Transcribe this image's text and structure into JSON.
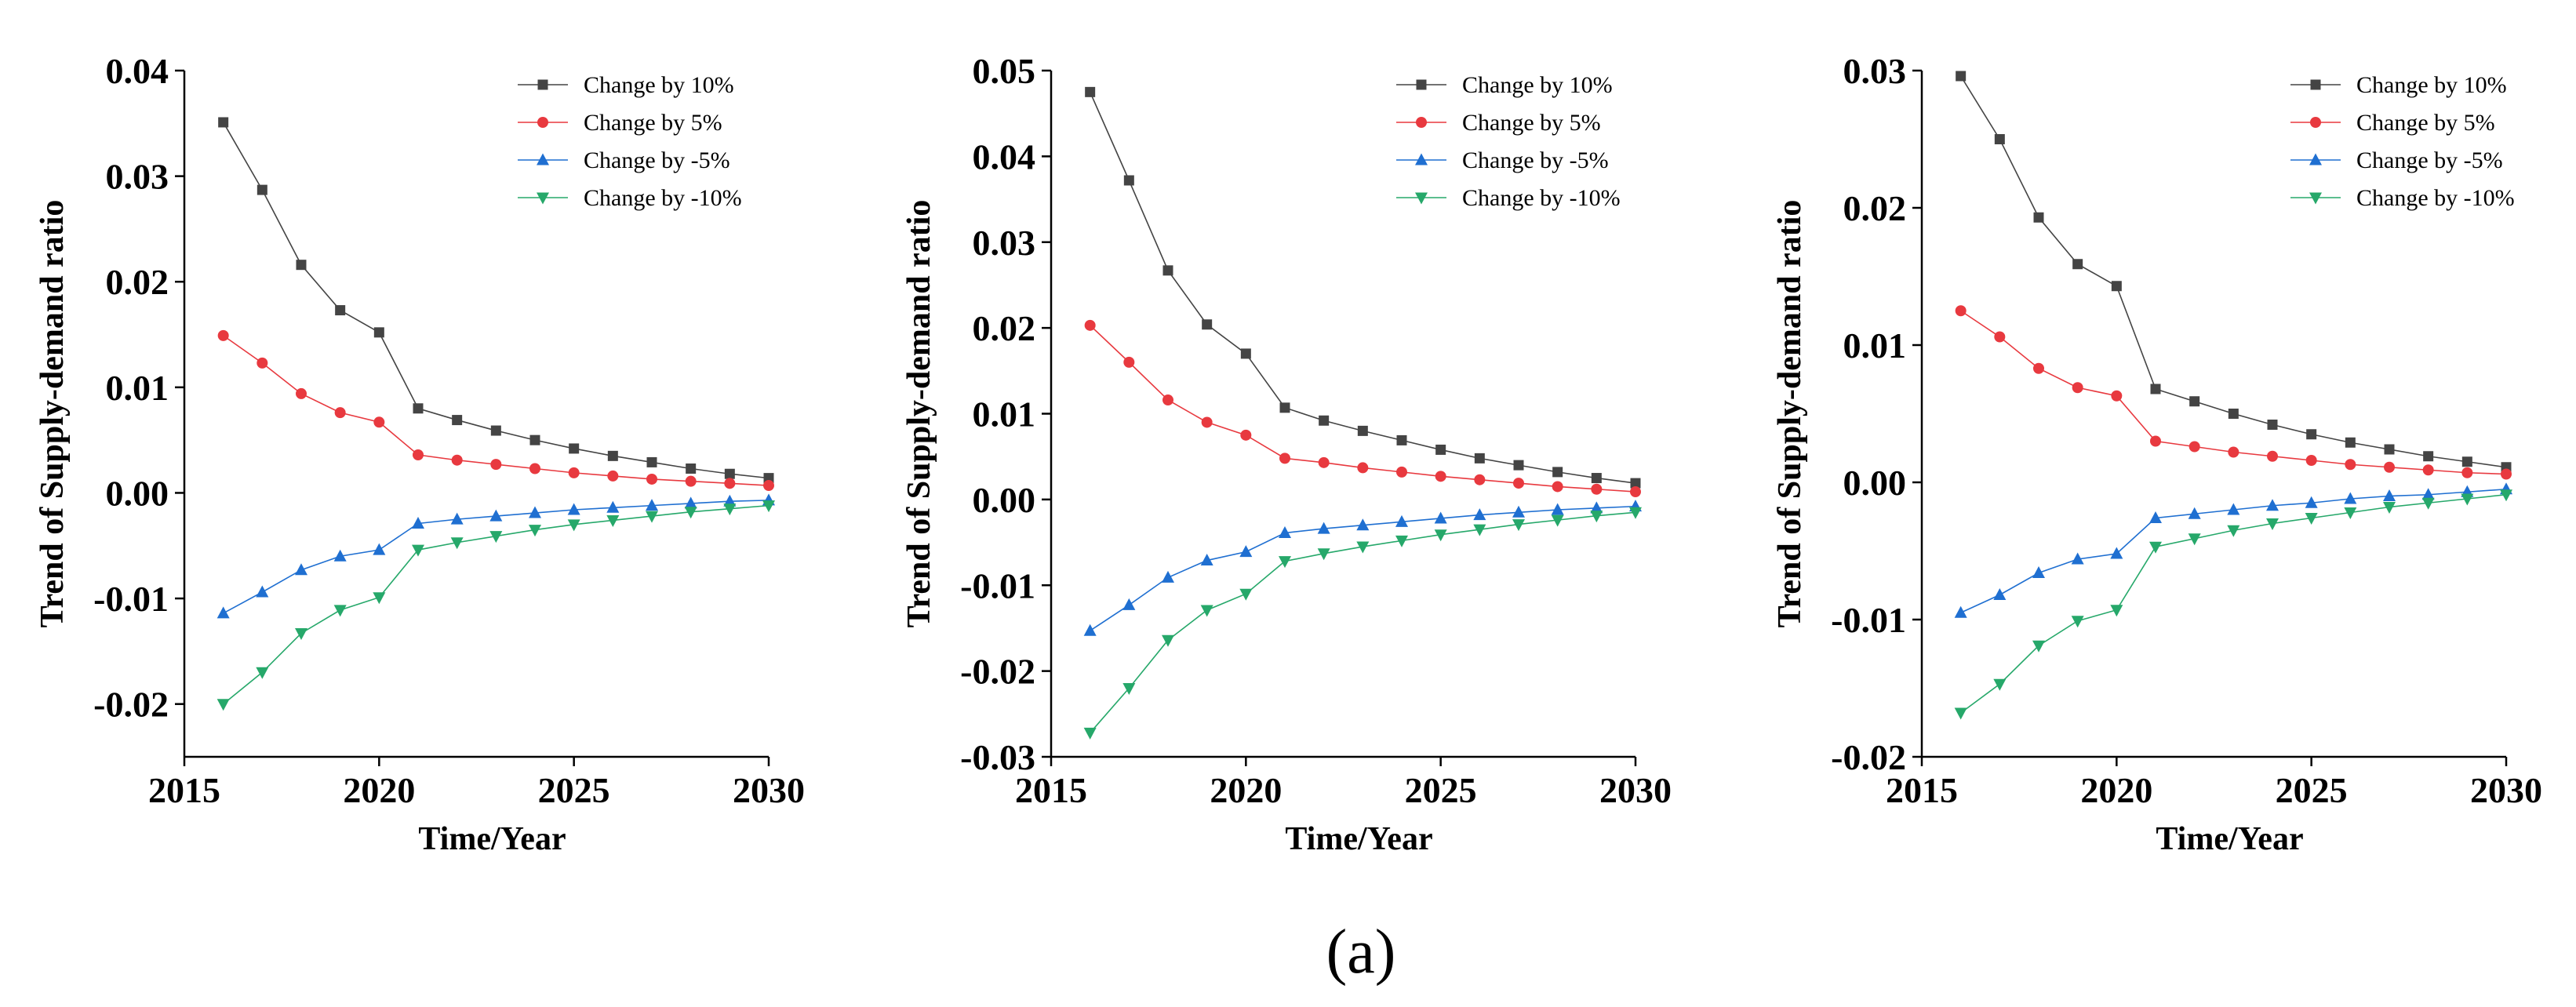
{
  "caption": "(a)",
  "chart_data": [
    {
      "type": "line",
      "title": "",
      "xlabel": "Time/Year",
      "ylabel": "Trend of Supply-demand ratio",
      "xlim": [
        2015,
        2030
      ],
      "ylim": [
        -0.025,
        0.04
      ],
      "xticks": [
        2015,
        2020,
        2025,
        2030
      ],
      "yticks": [
        -0.02,
        -0.01,
        0.0,
        0.01,
        0.02,
        0.03,
        0.04
      ],
      "ytick_labels": [
        "-0.02",
        "-0.01",
        "0.00",
        "0.01",
        "0.02",
        "0.03",
        "0.04"
      ],
      "grid": false,
      "legend_position": "top-right",
      "x": [
        2016,
        2017,
        2018,
        2019,
        2020,
        2021,
        2022,
        2023,
        2024,
        2025,
        2026,
        2027,
        2028,
        2029,
        2030
      ],
      "series": [
        {
          "name": "Change by 10%",
          "color": "#444444",
          "marker": "square",
          "values": [
            0.0351,
            0.0287,
            0.0216,
            0.0173,
            0.0152,
            0.008,
            0.0069,
            0.0059,
            0.005,
            0.0042,
            0.0035,
            0.0029,
            0.0023,
            0.0018,
            0.0014
          ]
        },
        {
          "name": "Change by 5%",
          "color": "#e8393f",
          "marker": "circle",
          "values": [
            0.0149,
            0.0123,
            0.0094,
            0.0076,
            0.0067,
            0.0036,
            0.0031,
            0.0027,
            0.0023,
            0.0019,
            0.0016,
            0.0013,
            0.0011,
            0.0009,
            0.0007
          ]
        },
        {
          "name": "Change by -5%",
          "color": "#1f6fd1",
          "marker": "triangle-up",
          "values": [
            -0.0114,
            -0.0094,
            -0.0073,
            -0.006,
            -0.0054,
            -0.0029,
            -0.0025,
            -0.0022,
            -0.0019,
            -0.0016,
            -0.0014,
            -0.0012,
            -0.001,
            -0.0008,
            -0.0007
          ]
        },
        {
          "name": "Change by -10%",
          "color": "#26a86a",
          "marker": "triangle-down",
          "values": [
            -0.02,
            -0.017,
            -0.0133,
            -0.0111,
            -0.0099,
            -0.0054,
            -0.0047,
            -0.0041,
            -0.0035,
            -0.003,
            -0.0026,
            -0.0022,
            -0.0018,
            -0.0015,
            -0.0012
          ]
        }
      ]
    },
    {
      "type": "line",
      "title": "",
      "xlabel": "Time/Year",
      "ylabel": "Trend of Supply-demand ratio",
      "xlim": [
        2015,
        2030
      ],
      "ylim": [
        -0.03,
        0.05
      ],
      "xticks": [
        2015,
        2020,
        2025,
        2030
      ],
      "yticks": [
        -0.03,
        -0.02,
        -0.01,
        0.0,
        0.01,
        0.02,
        0.03,
        0.04,
        0.05
      ],
      "ytick_labels": [
        "-0.03",
        "-0.02",
        "-0.01",
        "0.00",
        "0.01",
        "0.02",
        "0.03",
        "0.04",
        "0.05"
      ],
      "grid": false,
      "legend_position": "top-right",
      "x": [
        2016,
        2017,
        2018,
        2019,
        2020,
        2021,
        2022,
        2023,
        2024,
        2025,
        2026,
        2027,
        2028,
        2029,
        2030
      ],
      "series": [
        {
          "name": "Change by 10%",
          "color": "#444444",
          "marker": "square",
          "values": [
            0.0475,
            0.0372,
            0.0267,
            0.0204,
            0.017,
            0.0107,
            0.0092,
            0.008,
            0.0069,
            0.0058,
            0.0048,
            0.004,
            0.0032,
            0.0025,
            0.0019
          ]
        },
        {
          "name": "Change by 5%",
          "color": "#e8393f",
          "marker": "circle",
          "values": [
            0.0203,
            0.016,
            0.0116,
            0.009,
            0.0075,
            0.0048,
            0.0043,
            0.0037,
            0.0032,
            0.0027,
            0.0023,
            0.0019,
            0.0015,
            0.0012,
            0.0009
          ]
        },
        {
          "name": "Change by -5%",
          "color": "#1f6fd1",
          "marker": "triangle-up",
          "values": [
            -0.0153,
            -0.0123,
            -0.0091,
            -0.0071,
            -0.0061,
            -0.0039,
            -0.0034,
            -0.003,
            -0.0026,
            -0.0022,
            -0.0018,
            -0.0015,
            -0.0012,
            -0.001,
            -0.0008
          ]
        },
        {
          "name": "Change by -10%",
          "color": "#26a86a",
          "marker": "triangle-down",
          "values": [
            -0.0272,
            -0.022,
            -0.0164,
            -0.0129,
            -0.011,
            -0.0072,
            -0.0063,
            -0.0055,
            -0.0048,
            -0.0041,
            -0.0035,
            -0.0029,
            -0.0024,
            -0.0019,
            -0.0015
          ]
        }
      ]
    },
    {
      "type": "line",
      "title": "",
      "xlabel": "Time/Year",
      "ylabel": "Trend of Supply-demand ratio",
      "xlim": [
        2015,
        2030
      ],
      "ylim": [
        -0.02,
        0.03
      ],
      "xticks": [
        2015,
        2020,
        2025,
        2030
      ],
      "yticks": [
        -0.02,
        -0.01,
        0.0,
        0.01,
        0.02,
        0.03
      ],
      "ytick_labels": [
        "-0.02",
        "-0.01",
        "0.00",
        "0.01",
        "0.02",
        "0.03"
      ],
      "grid": false,
      "legend_position": "top-right",
      "x": [
        2016,
        2017,
        2018,
        2019,
        2020,
        2021,
        2022,
        2023,
        2024,
        2025,
        2026,
        2027,
        2028,
        2029,
        2030
      ],
      "series": [
        {
          "name": "Change by 10%",
          "color": "#444444",
          "marker": "square",
          "values": [
            0.0296,
            0.025,
            0.0193,
            0.0159,
            0.0143,
            0.0068,
            0.0059,
            0.005,
            0.0042,
            0.0035,
            0.0029,
            0.0024,
            0.0019,
            0.0015,
            0.0011
          ]
        },
        {
          "name": "Change by 5%",
          "color": "#e8393f",
          "marker": "circle",
          "values": [
            0.0125,
            0.0106,
            0.0083,
            0.0069,
            0.0063,
            0.003,
            0.0026,
            0.0022,
            0.0019,
            0.0016,
            0.0013,
            0.0011,
            0.0009,
            0.0007,
            0.0006
          ]
        },
        {
          "name": "Change by -5%",
          "color": "#1f6fd1",
          "marker": "triangle-up",
          "values": [
            -0.0095,
            -0.0082,
            -0.0066,
            -0.0056,
            -0.0052,
            -0.0026,
            -0.0023,
            -0.002,
            -0.0017,
            -0.0015,
            -0.0012,
            -0.001,
            -0.0009,
            -0.0007,
            -0.0005
          ]
        },
        {
          "name": "Change by -10%",
          "color": "#26a86a",
          "marker": "triangle-down",
          "values": [
            -0.0168,
            -0.0147,
            -0.0119,
            -0.0101,
            -0.0093,
            -0.0047,
            -0.0041,
            -0.0035,
            -0.003,
            -0.0026,
            -0.0022,
            -0.0018,
            -0.0015,
            -0.0012,
            -0.0009
          ]
        }
      ]
    }
  ]
}
